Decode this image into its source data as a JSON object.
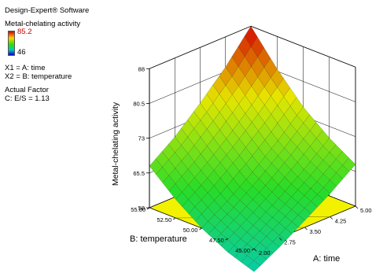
{
  "software_title": "Design-Expert® Software",
  "legend": {
    "response_name": "Metal-chelating activity",
    "max_label": "85.2",
    "min_label": "46",
    "x1_def": "X1 = A: time",
    "x2_def": "X2 = B: temperature",
    "actual_factor_heading": "Actual Factor",
    "actual_factor_value": "C: E/S = 1.13"
  },
  "chart_data": {
    "type": "surface-3d",
    "zlabel": "Metal-chelating activity",
    "xlabel": "A: time",
    "ylabel": "B: temperature",
    "x_ticks": [
      "2.00",
      "2.75",
      "3.50",
      "4.25",
      "5.00"
    ],
    "y_ticks": [
      "45.00",
      "47.50",
      "50.00",
      "52.50",
      "55.00"
    ],
    "z_ticks": [
      "58",
      "65.5",
      "73",
      "80.5",
      "88"
    ],
    "x_values": [
      2.0,
      2.75,
      3.5,
      4.25,
      5.0
    ],
    "y_values": [
      45.0,
      47.5,
      50.0,
      52.5,
      55.0
    ],
    "zlim": [
      58,
      88
    ],
    "surface": [
      [
        53,
        56,
        59.5,
        63,
        67
      ],
      [
        55,
        58.5,
        62,
        66,
        70.5
      ],
      [
        58,
        61.5,
        65.5,
        70,
        75
      ],
      [
        62,
        66,
        70.5,
        75.5,
        81
      ],
      [
        67,
        71,
        76,
        81.5,
        88
      ]
    ],
    "colors": {
      "low": "#00c8c8",
      "high": "#d40000",
      "floor": "#f2f200"
    }
  }
}
